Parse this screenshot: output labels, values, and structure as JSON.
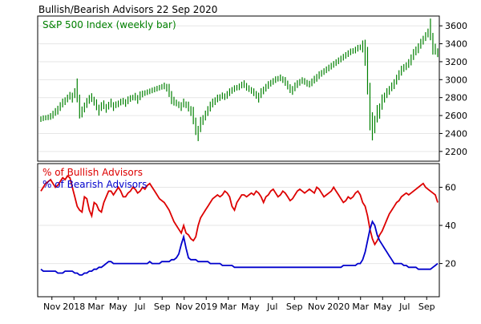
{
  "chart_data": [
    {
      "type": "bar",
      "title": "Bullish/Bearish Advisors  22 Sep 2020",
      "panel_label": "S&P 500 Index (weekly bar)",
      "ylim": [
        2100,
        3700
      ],
      "yticks": [
        2200,
        2400,
        2600,
        2800,
        3000,
        3200,
        3400,
        3600
      ],
      "grid": true,
      "color": "#008000",
      "series": [
        {
          "values": [
            2560,
            2570,
            2575,
            2580,
            2590,
            2610,
            2640,
            2660,
            2700,
            2740,
            2760,
            2790,
            2820,
            2800,
            2850,
            2880,
            2700,
            2640,
            2690,
            2740,
            2780,
            2800,
            2760,
            2720,
            2660,
            2700,
            2720,
            2680,
            2710,
            2740,
            2700,
            2720,
            2730,
            2750,
            2760,
            2740,
            2770,
            2790,
            2800,
            2810,
            2780,
            2820,
            2840,
            2850,
            2860,
            2870,
            2880,
            2890,
            2900,
            2910,
            2920,
            2930,
            2910,
            2880,
            2800,
            2760,
            2740,
            2720,
            2700,
            2740,
            2720,
            2700,
            2650,
            2600,
            2480,
            2400,
            2500,
            2550,
            2600,
            2650,
            2700,
            2740,
            2760,
            2790,
            2800,
            2820,
            2810,
            2830,
            2860,
            2880,
            2900,
            2910,
            2920,
            2940,
            2950,
            2920,
            2900,
            2880,
            2860,
            2830,
            2800,
            2850,
            2880,
            2910,
            2940,
            2960,
            2980,
            3000,
            3010,
            3020,
            3000,
            2980,
            2940,
            2900,
            2880,
            2920,
            2950,
            2970,
            2990,
            2980,
            2960,
            2950,
            2970,
            3000,
            3020,
            3050,
            3070,
            3090,
            3110,
            3130,
            3150,
            3170,
            3190,
            3210,
            3230,
            3250,
            3270,
            3290,
            3310,
            3320,
            3330,
            3350,
            3360,
            3370,
            3300,
            3100,
            2700,
            2480,
            2500,
            2620,
            2650,
            2750,
            2800,
            2850,
            2880,
            2920,
            2950,
            3000,
            3050,
            3100,
            3130,
            3150,
            3180,
            3220,
            3280,
            3320,
            3350,
            3400,
            3440,
            3480,
            3520,
            3560,
            3400,
            3340,
            3300
          ]
        }
      ]
    },
    {
      "type": "line",
      "ylim": [
        3,
        72
      ],
      "yticks": [
        20,
        40,
        60
      ],
      "grid": true,
      "x_tick_labels": [
        "Nov",
        "2018",
        "Mar",
        "May",
        "Jul",
        "Sep",
        "Nov",
        "2019",
        "Mar",
        "May",
        "Jul",
        "Sep",
        "Nov",
        "2020",
        "Mar",
        "May",
        "Jul",
        "Sep"
      ],
      "series": [
        {
          "name": "% of Bullish Advisors",
          "color": "#dd0000",
          "values": [
            58,
            60,
            62,
            63,
            64,
            62,
            60,
            61,
            63,
            65,
            64,
            66,
            65,
            60,
            55,
            50,
            48,
            47,
            55,
            54,
            48,
            45,
            52,
            51,
            48,
            47,
            52,
            55,
            58,
            58,
            56,
            58,
            60,
            58,
            55,
            55,
            57,
            58,
            60,
            59,
            57,
            58,
            60,
            59,
            61,
            62,
            60,
            58,
            56,
            54,
            53,
            52,
            50,
            48,
            45,
            42,
            40,
            38,
            36,
            40,
            36,
            35,
            33,
            32,
            34,
            40,
            44,
            46,
            48,
            50,
            52,
            54,
            55,
            56,
            55,
            56,
            58,
            57,
            55,
            50,
            48,
            52,
            54,
            56,
            56,
            55,
            56,
            57,
            56,
            58,
            57,
            55,
            52,
            55,
            56,
            58,
            59,
            57,
            55,
            56,
            58,
            57,
            55,
            53,
            54,
            56,
            58,
            59,
            58,
            57,
            58,
            59,
            58,
            57,
            60,
            59,
            57,
            55,
            56,
            57,
            58,
            60,
            58,
            56,
            54,
            52,
            53,
            55,
            54,
            55,
            57,
            58,
            56,
            52,
            50,
            45,
            38,
            33,
            30,
            32,
            35,
            37,
            40,
            43,
            46,
            48,
            50,
            52,
            53,
            55,
            56,
            57,
            56,
            57,
            58,
            59,
            60,
            61,
            62,
            60,
            59,
            58,
            57,
            56,
            52
          ]
        },
        {
          "name": "% of Bearish Advisors",
          "color": "#0000cc",
          "values": [
            17,
            16,
            16,
            16,
            16,
            16,
            16,
            15,
            15,
            15,
            16,
            16,
            16,
            16,
            15,
            15,
            14,
            14,
            15,
            15,
            16,
            16,
            17,
            17,
            18,
            18,
            19,
            20,
            21,
            21,
            20,
            20,
            20,
            20,
            20,
            20,
            20,
            20,
            20,
            20,
            20,
            20,
            20,
            20,
            20,
            21,
            20,
            20,
            20,
            20,
            21,
            21,
            21,
            21,
            22,
            22,
            23,
            25,
            30,
            34,
            28,
            23,
            22,
            22,
            22,
            21,
            21,
            21,
            21,
            21,
            20,
            20,
            20,
            20,
            20,
            19,
            19,
            19,
            19,
            19,
            18,
            18,
            18,
            18,
            18,
            18,
            18,
            18,
            18,
            18,
            18,
            18,
            18,
            18,
            18,
            18,
            18,
            18,
            18,
            18,
            18,
            18,
            18,
            18,
            18,
            18,
            18,
            18,
            18,
            18,
            18,
            18,
            18,
            18,
            18,
            18,
            18,
            18,
            18,
            18,
            18,
            18,
            18,
            18,
            18,
            19,
            19,
            19,
            19,
            19,
            19,
            20,
            20,
            22,
            26,
            32,
            38,
            42,
            40,
            35,
            32,
            30,
            28,
            26,
            24,
            22,
            20,
            20,
            20,
            20,
            19,
            19,
            18,
            18,
            18,
            18,
            17,
            17,
            17,
            17,
            17,
            17,
            18,
            19,
            20
          ]
        }
      ]
    }
  ]
}
